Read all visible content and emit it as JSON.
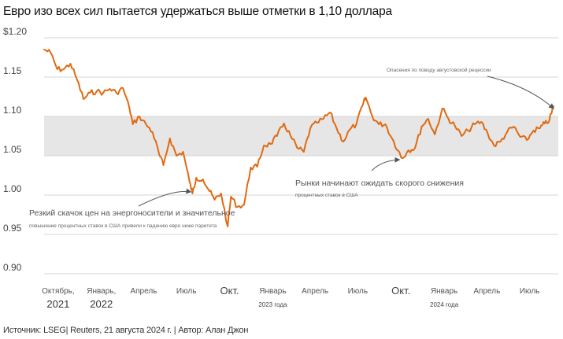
{
  "title": "Евро изо всех сил пытается удержаться выше отметки в 1,10 доллара",
  "source": "Источник: LSEG| Reuters, 21 августа 2024 г. | Автор: Алан Джон",
  "chart_data": {
    "type": "line",
    "colors": {
      "line": "#e06a12",
      "band": "#e6e6e6",
      "grid": "#d4d4d4",
      "arrow": "#555555"
    },
    "ylim": [
      0.9,
      1.2
    ],
    "yticks": [
      {
        "value": 1.2,
        "label": "$1.20"
      },
      {
        "value": 1.15,
        "label": "1.15"
      },
      {
        "value": 1.1,
        "label": "1.10"
      },
      {
        "value": 1.05,
        "label": "1.05"
      },
      {
        "value": 1.0,
        "label": "1.00"
      },
      {
        "value": 0.95,
        "label": "0.95"
      },
      {
        "value": 0.9,
        "label": "0.90"
      }
    ],
    "band": {
      "from": 1.05,
      "to": 1.1
    },
    "xlim": [
      "2021-09-01",
      "2024-08-31"
    ],
    "xticks": [
      {
        "date": "2021-10-01",
        "label": "Октябрь,",
        "style": "small"
      },
      {
        "date": "2022-01-01",
        "label": "Январь,",
        "style": "small"
      },
      {
        "date": "2022-04-01",
        "label": "Апрель",
        "style": "small"
      },
      {
        "date": "2022-07-01",
        "label": "Июль",
        "style": "small"
      },
      {
        "date": "2022-10-01",
        "label": "Окт.",
        "style": "big"
      },
      {
        "date": "2023-01-01",
        "label": "Январь",
        "style": "small"
      },
      {
        "date": "2023-04-01",
        "label": "Апрель",
        "style": "small"
      },
      {
        "date": "2023-07-01",
        "label": "Июль",
        "style": "small"
      },
      {
        "date": "2023-10-01",
        "label": "Окт.",
        "style": "big"
      },
      {
        "date": "2024-01-01",
        "label": "Январь",
        "style": "small"
      },
      {
        "date": "2024-04-01",
        "label": "Апрель",
        "style": "small"
      },
      {
        "date": "2024-07-01",
        "label": "Июль",
        "style": "small"
      }
    ],
    "year_labels": [
      {
        "date": "2021-10-01",
        "label": "2021",
        "style": "big"
      },
      {
        "date": "2022-01-01",
        "label": "2022",
        "style": "big"
      },
      {
        "date": "2023-01-01",
        "label": "2023 года",
        "style": "small"
      },
      {
        "date": "2024-01-01",
        "label": "2024 года",
        "style": "small"
      }
    ],
    "series": [
      {
        "points": [
          [
            "2021-09-01",
            1.185
          ],
          [
            "2021-09-15",
            1.181
          ],
          [
            "2021-09-29",
            1.16
          ],
          [
            "2021-10-13",
            1.16
          ],
          [
            "2021-10-27",
            1.167
          ],
          [
            "2021-11-10",
            1.147
          ],
          [
            "2021-11-24",
            1.122
          ],
          [
            "2021-12-08",
            1.13
          ],
          [
            "2021-12-22",
            1.132
          ],
          [
            "2022-01-05",
            1.13
          ],
          [
            "2022-01-19",
            1.135
          ],
          [
            "2022-02-02",
            1.13
          ],
          [
            "2022-02-16",
            1.136
          ],
          [
            "2022-03-02",
            1.11
          ],
          [
            "2022-03-09",
            1.09
          ],
          [
            "2022-03-23",
            1.1
          ],
          [
            "2022-04-06",
            1.09
          ],
          [
            "2022-04-20",
            1.08
          ],
          [
            "2022-05-04",
            1.052
          ],
          [
            "2022-05-13",
            1.038
          ],
          [
            "2022-05-27",
            1.072
          ],
          [
            "2022-06-10",
            1.05
          ],
          [
            "2022-06-24",
            1.055
          ],
          [
            "2022-07-08",
            1.016
          ],
          [
            "2022-07-14",
            1.002
          ],
          [
            "2022-07-22",
            1.022
          ],
          [
            "2022-08-05",
            1.02
          ],
          [
            "2022-08-19",
            1.005
          ],
          [
            "2022-08-30",
            0.994
          ],
          [
            "2022-09-13",
            1.002
          ],
          [
            "2022-09-27",
            0.96
          ],
          [
            "2022-10-04",
            0.998
          ],
          [
            "2022-10-18",
            0.985
          ],
          [
            "2022-11-01",
            0.988
          ],
          [
            "2022-11-15",
            1.035
          ],
          [
            "2022-11-29",
            1.036
          ],
          [
            "2022-12-13",
            1.063
          ],
          [
            "2022-12-27",
            1.065
          ],
          [
            "2023-01-10",
            1.075
          ],
          [
            "2023-01-25",
            1.091
          ],
          [
            "2023-02-08",
            1.075
          ],
          [
            "2023-02-22",
            1.06
          ],
          [
            "2023-03-08",
            1.055
          ],
          [
            "2023-03-22",
            1.085
          ],
          [
            "2023-04-05",
            1.092
          ],
          [
            "2023-04-19",
            1.097
          ],
          [
            "2023-05-03",
            1.105
          ],
          [
            "2023-05-17",
            1.085
          ],
          [
            "2023-05-31",
            1.068
          ],
          [
            "2023-06-14",
            1.083
          ],
          [
            "2023-06-28",
            1.09
          ],
          [
            "2023-07-12",
            1.115
          ],
          [
            "2023-07-18",
            1.124
          ],
          [
            "2023-08-01",
            1.1
          ],
          [
            "2023-08-15",
            1.09
          ],
          [
            "2023-08-29",
            1.09
          ],
          [
            "2023-09-12",
            1.072
          ],
          [
            "2023-09-26",
            1.056
          ],
          [
            "2023-10-03",
            1.047
          ],
          [
            "2023-10-17",
            1.057
          ],
          [
            "2023-10-31",
            1.06
          ],
          [
            "2023-11-14",
            1.087
          ],
          [
            "2023-11-28",
            1.097
          ],
          [
            "2023-12-12",
            1.077
          ],
          [
            "2023-12-28",
            1.11
          ],
          [
            "2024-01-10",
            1.097
          ],
          [
            "2024-01-24",
            1.088
          ],
          [
            "2024-02-07",
            1.075
          ],
          [
            "2024-02-21",
            1.082
          ],
          [
            "2024-03-06",
            1.09
          ],
          [
            "2024-03-20",
            1.093
          ],
          [
            "2024-04-03",
            1.078
          ],
          [
            "2024-04-16",
            1.063
          ],
          [
            "2024-04-30",
            1.068
          ],
          [
            "2024-05-14",
            1.08
          ],
          [
            "2024-05-28",
            1.087
          ],
          [
            "2024-06-11",
            1.074
          ],
          [
            "2024-06-25",
            1.07
          ],
          [
            "2024-07-09",
            1.082
          ],
          [
            "2024-07-23",
            1.085
          ],
          [
            "2024-08-02",
            1.091
          ],
          [
            "2024-08-12",
            1.095
          ],
          [
            "2024-08-21",
            1.113
          ]
        ]
      }
    ],
    "annotations": [
      {
        "id": "energy",
        "lines": [
          "Резкий скачок цен на энергоносители и значительное",
          "повышение процентных ставок в США привели к падению евро ниже паритета"
        ],
        "arrow_to": [
          "2022-07-14",
          1.002
        ]
      },
      {
        "id": "rate-cuts",
        "lines": [
          "Рынки начинают ожидать скорого снижения",
          "процентных ставок в США"
        ],
        "arrow_to": [
          "2023-10-03",
          1.047
        ]
      },
      {
        "id": "recession",
        "lines": [
          "Опасения по поводу августовской рецессии"
        ],
        "arrow_to": [
          "2024-08-18",
          1.104
        ]
      }
    ]
  }
}
